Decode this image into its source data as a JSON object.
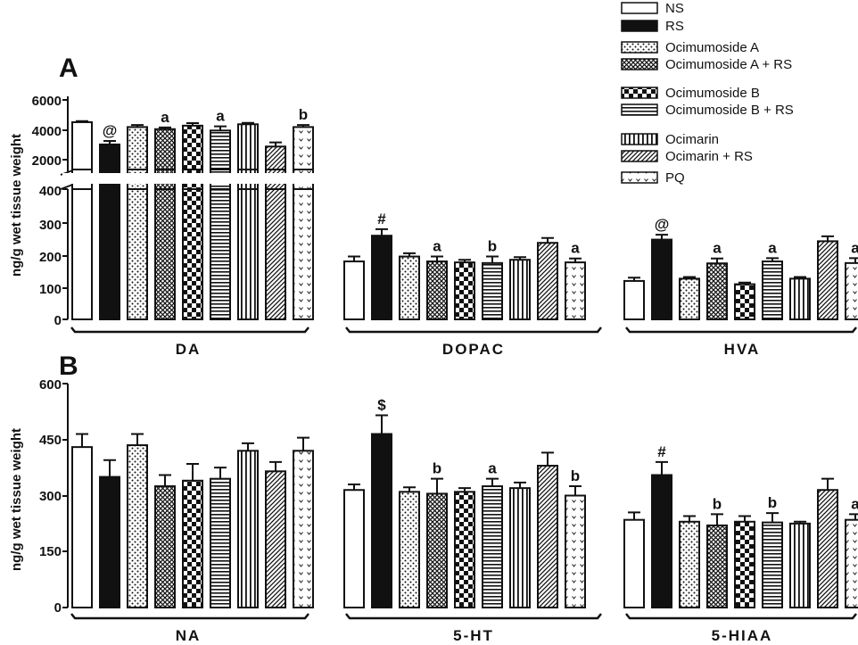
{
  "colors": {
    "ink": "#111111",
    "background": "#ffffff"
  },
  "legend": {
    "items": [
      {
        "label": "NS",
        "pattern": "white"
      },
      {
        "label": "RS",
        "pattern": "black"
      },
      {
        "label": "Ocimumoside A",
        "pattern": "dots"
      },
      {
        "label": "Ocimumoside A + RS",
        "pattern": "crosshatch"
      },
      {
        "label": "Ocimumoside B",
        "pattern": "checker"
      },
      {
        "label": "Ocimumoside B + RS",
        "pattern": "hlines"
      },
      {
        "label": "Ocimarin",
        "pattern": "vlines"
      },
      {
        "label": "Ocimarin + RS",
        "pattern": "diag"
      },
      {
        "label": "PQ",
        "pattern": "chevrons"
      }
    ]
  },
  "chart_data": [
    {
      "type": "bar",
      "panel": "A",
      "ylabel": "ng/g wet tissue weight",
      "broken_axis": true,
      "y_lower_ticks": [
        "0",
        "100",
        "200",
        "300",
        "400"
      ],
      "y_upper_ticks": [
        "2000",
        "4000",
        "6000"
      ],
      "ylim_lower": [
        0,
        400
      ],
      "ylim_upper": [
        1000,
        6000
      ],
      "categories": [
        "DA",
        "DOPAC",
        "HVA"
      ],
      "series": [
        {
          "name": "NS",
          "values": [
            4400,
            178,
            118
          ],
          "errors": [
            80,
            15,
            10
          ]
        },
        {
          "name": "RS",
          "values": [
            2800,
            257,
            245
          ],
          "errors": [
            250,
            20,
            15
          ]
        },
        {
          "name": "Ocimumoside A",
          "values": [
            4050,
            193,
            125
          ],
          "errors": [
            150,
            10,
            5
          ]
        },
        {
          "name": "Ocimumoside A + RS",
          "values": [
            3900,
            178,
            172
          ],
          "errors": [
            120,
            15,
            15
          ]
        },
        {
          "name": "Ocimumoside B",
          "values": [
            4150,
            175,
            108
          ],
          "errors": [
            180,
            8,
            5
          ]
        },
        {
          "name": "Ocimumoside B + RS",
          "values": [
            3800,
            173,
            178
          ],
          "errors": [
            300,
            20,
            10
          ]
        },
        {
          "name": "Ocimarin",
          "values": [
            4250,
            183,
            125
          ],
          "errors": [
            100,
            8,
            5
          ]
        },
        {
          "name": "Ocimarin + RS",
          "values": [
            2650,
            235,
            240
          ],
          "errors": [
            300,
            15,
            15
          ]
        },
        {
          "name": "PQ",
          "values": [
            4050,
            175,
            173
          ],
          "errors": [
            150,
            12,
            15
          ]
        }
      ],
      "annotations": [
        {
          "group": 0,
          "bar": 1,
          "text": "@"
        },
        {
          "group": 0,
          "bar": 3,
          "text": "a"
        },
        {
          "group": 0,
          "bar": 5,
          "text": "a"
        },
        {
          "group": 0,
          "bar": 8,
          "text": "b"
        },
        {
          "group": 1,
          "bar": 1,
          "text": "#"
        },
        {
          "group": 1,
          "bar": 3,
          "text": "a"
        },
        {
          "group": 1,
          "bar": 5,
          "text": "b"
        },
        {
          "group": 1,
          "bar": 8,
          "text": "a"
        },
        {
          "group": 2,
          "bar": 1,
          "text": "@"
        },
        {
          "group": 2,
          "bar": 3,
          "text": "a"
        },
        {
          "group": 2,
          "bar": 5,
          "text": "a"
        },
        {
          "group": 2,
          "bar": 8,
          "text": "a"
        }
      ]
    },
    {
      "type": "bar",
      "panel": "B",
      "ylabel": "ng/g wet tissue weight",
      "broken_axis": false,
      "y_ticks": [
        "0",
        "150",
        "300",
        "450",
        "600"
      ],
      "ylim": [
        0,
        600
      ],
      "categories": [
        "NA",
        "5-HT",
        "5-HIAA"
      ],
      "series": [
        {
          "name": "NS",
          "values": [
            430,
            315,
            235
          ],
          "errors": [
            35,
            15,
            20
          ]
        },
        {
          "name": "RS",
          "values": [
            350,
            465,
            355
          ],
          "errors": [
            45,
            50,
            35
          ]
        },
        {
          "name": "Ocimumoside A",
          "values": [
            435,
            310,
            230
          ],
          "errors": [
            30,
            12,
            15
          ]
        },
        {
          "name": "Ocimumoside A + RS",
          "values": [
            325,
            305,
            220
          ],
          "errors": [
            30,
            40,
            30
          ]
        },
        {
          "name": "Ocimumoside B",
          "values": [
            340,
            310,
            230
          ],
          "errors": [
            45,
            10,
            15
          ]
        },
        {
          "name": "Ocimumoside B + RS",
          "values": [
            345,
            325,
            228
          ],
          "errors": [
            30,
            20,
            25
          ]
        },
        {
          "name": "Ocimarin",
          "values": [
            420,
            320,
            225
          ],
          "errors": [
            20,
            15,
            5
          ]
        },
        {
          "name": "Ocimarin + RS",
          "values": [
            365,
            380,
            315
          ],
          "errors": [
            25,
            35,
            30
          ]
        },
        {
          "name": "PQ",
          "values": [
            420,
            300,
            235
          ],
          "errors": [
            35,
            25,
            15
          ]
        }
      ],
      "annotations": [
        {
          "group": 1,
          "bar": 1,
          "text": "$"
        },
        {
          "group": 1,
          "bar": 3,
          "text": "b"
        },
        {
          "group": 1,
          "bar": 5,
          "text": "a"
        },
        {
          "group": 1,
          "bar": 8,
          "text": "b"
        },
        {
          "group": 2,
          "bar": 1,
          "text": "#"
        },
        {
          "group": 2,
          "bar": 3,
          "text": "b"
        },
        {
          "group": 2,
          "bar": 5,
          "text": "b"
        },
        {
          "group": 2,
          "bar": 8,
          "text": "a"
        }
      ]
    }
  ]
}
